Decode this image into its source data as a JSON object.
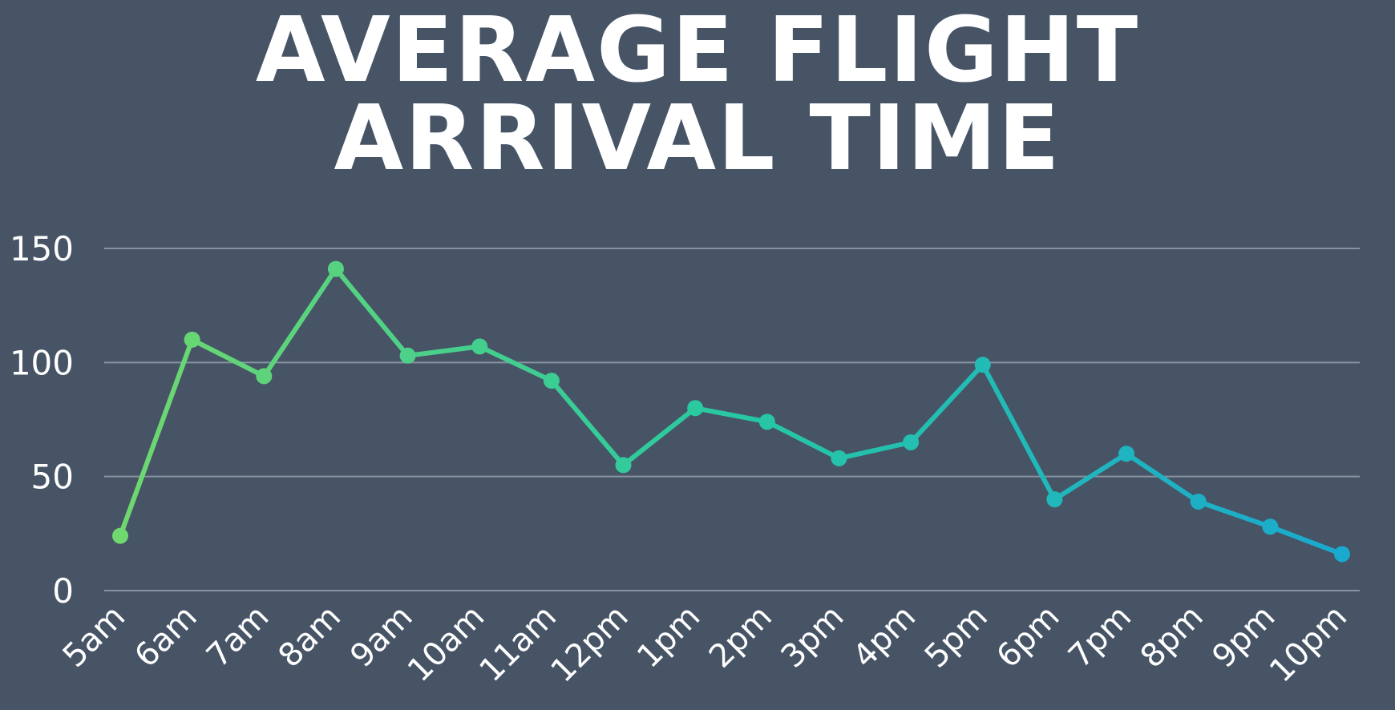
{
  "title_lines": [
    "AVERAGE FLIGHT",
    "ARRIVAL TIME"
  ],
  "colors": {
    "background": "#465466",
    "gradient_start": "#6fd86e",
    "gradient_mid": "#27c8a3",
    "gradient_end": "#1aa9cf",
    "text": "#ffffff",
    "grid": "#8793a1"
  },
  "chart_data": {
    "type": "line",
    "title": "AVERAGE FLIGHT ARRIVAL TIME",
    "xlabel": "",
    "ylabel": "",
    "categories": [
      "5am",
      "6am",
      "7am",
      "8am",
      "9am",
      "10am",
      "11am",
      "12pm",
      "1pm",
      "2pm",
      "3pm",
      "4pm",
      "5pm",
      "6pm",
      "7pm",
      "8pm",
      "9pm",
      "10pm"
    ],
    "values": [
      24,
      110,
      94,
      141,
      103,
      107,
      92,
      55,
      80,
      74,
      58,
      65,
      99,
      40,
      60,
      39,
      28,
      16
    ],
    "ylim": [
      0,
      150
    ],
    "yticks": [
      "0",
      "50",
      "100",
      "150"
    ],
    "grid": true,
    "legend": "none"
  }
}
